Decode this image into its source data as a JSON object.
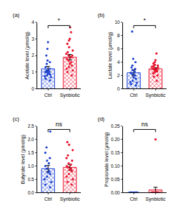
{
  "chart_data": [
    {
      "type": "bar",
      "title": "(a)",
      "y_label": "Acetate level (μmol/g)",
      "categories": [
        "Ctrl",
        "Synbiotic"
      ],
      "values": [
        1.2,
        1.9
      ],
      "errors": [
        0.14,
        0.16
      ],
      "points": [
        [
          0.5,
          0.6,
          0.7,
          0.75,
          0.8,
          0.85,
          0.9,
          0.95,
          1.0,
          1.0,
          1.05,
          1.1,
          1.2,
          1.3,
          1.5,
          1.6,
          1.7,
          2.0,
          2.4,
          2.8
        ],
        [
          0.8,
          1.0,
          1.1,
          1.2,
          1.3,
          1.4,
          1.5,
          1.6,
          1.7,
          1.8,
          1.9,
          2.0,
          2.0,
          2.1,
          2.2,
          2.3,
          2.5,
          2.7,
          2.9,
          3.0,
          3.4,
          3.7
        ]
      ],
      "colors": [
        "#1a3fd1",
        "#e8102a"
      ],
      "annotation": "*",
      "ylim": [
        0,
        4
      ],
      "yticks": [
        0,
        1,
        2,
        3,
        4
      ]
    },
    {
      "type": "bar",
      "title": "(b)",
      "y_label": "Lactate level (μmol/g)",
      "categories": [
        "Ctrl",
        "Synbiotic"
      ],
      "values": [
        2.4,
        3.0
      ],
      "errors": [
        0.45,
        0.18
      ],
      "points": [
        [
          0.5,
          0.7,
          0.9,
          1.0,
          1.2,
          1.5,
          1.7,
          2.0,
          2.2,
          2.4,
          2.6,
          2.8,
          3.0,
          3.2,
          3.5,
          4.0,
          4.5,
          8.6
        ],
        [
          1.2,
          1.8,
          2.0,
          2.3,
          2.5,
          2.6,
          2.7,
          2.8,
          2.9,
          3.0,
          3.0,
          3.1,
          3.2,
          3.3,
          3.4,
          3.5,
          3.6,
          3.8,
          4.0,
          4.3,
          5.3
        ]
      ],
      "colors": [
        "#1a3fd1",
        "#e8102a"
      ],
      "annotation": "*",
      "ylim": [
        0,
        10
      ],
      "yticks": [
        0,
        2,
        4,
        6,
        8,
        10
      ]
    },
    {
      "type": "bar",
      "title": "(c)",
      "y_label": "Butyrate level (μmol/g)",
      "categories": [
        "Ctrl",
        "Synbiotic"
      ],
      "values": [
        0.9,
        0.95
      ],
      "errors": [
        0.12,
        0.11
      ],
      "points": [
        [
          0.2,
          0.3,
          0.4,
          0.5,
          0.6,
          0.7,
          0.75,
          0.8,
          0.9,
          1.0,
          1.1,
          1.2,
          1.3,
          1.5,
          1.7,
          2.3
        ],
        [
          0.3,
          0.4,
          0.5,
          0.6,
          0.7,
          0.8,
          0.85,
          0.9,
          0.95,
          1.0,
          1.05,
          1.1,
          1.2,
          1.3,
          1.4,
          1.6,
          1.8,
          1.9
        ]
      ],
      "colors": [
        "#1a3fd1",
        "#e8102a"
      ],
      "annotation": "ns",
      "ylim": [
        0,
        2.5
      ],
      "yticks": [
        {
          "value": 0,
          "label": "0.0"
        },
        {
          "value": 0.5,
          "label": "0.5"
        },
        {
          "value": 1,
          "label": "1.0"
        },
        {
          "value": 1.5,
          "label": "1.5"
        },
        {
          "value": 2,
          "label": "2.0"
        },
        {
          "value": 2.5,
          "label": "2.5"
        }
      ]
    },
    {
      "type": "bar",
      "title": "(d)",
      "y_label": "Propionate level (μmol/g)",
      "categories": [
        "Ctrl",
        "Synbiotic"
      ],
      "values": [
        0,
        0.01
      ],
      "errors": [
        0,
        0.01
      ],
      "points": [
        [
          0,
          0,
          0,
          0,
          0,
          0,
          0,
          0,
          0,
          0,
          0,
          0,
          0,
          0,
          0,
          0
        ],
        [
          0,
          0,
          0,
          0,
          0,
          0,
          0,
          0,
          0,
          0,
          0,
          0,
          0,
          0,
          0,
          0,
          0,
          0,
          0,
          0.2
        ]
      ],
      "colors": [
        "#1a3fd1",
        "#e8102a"
      ],
      "annotation": "ns",
      "ylim": [
        0,
        0.25
      ],
      "yticks": [
        {
          "value": 0,
          "label": "0.00"
        },
        {
          "value": 0.05,
          "label": "0.05"
        },
        {
          "value": 0.1,
          "label": "0.10"
        },
        {
          "value": 0.15,
          "label": "0.15"
        },
        {
          "value": 0.2,
          "label": "0.20"
        },
        {
          "value": 0.25,
          "label": "0.25"
        }
      ]
    }
  ]
}
